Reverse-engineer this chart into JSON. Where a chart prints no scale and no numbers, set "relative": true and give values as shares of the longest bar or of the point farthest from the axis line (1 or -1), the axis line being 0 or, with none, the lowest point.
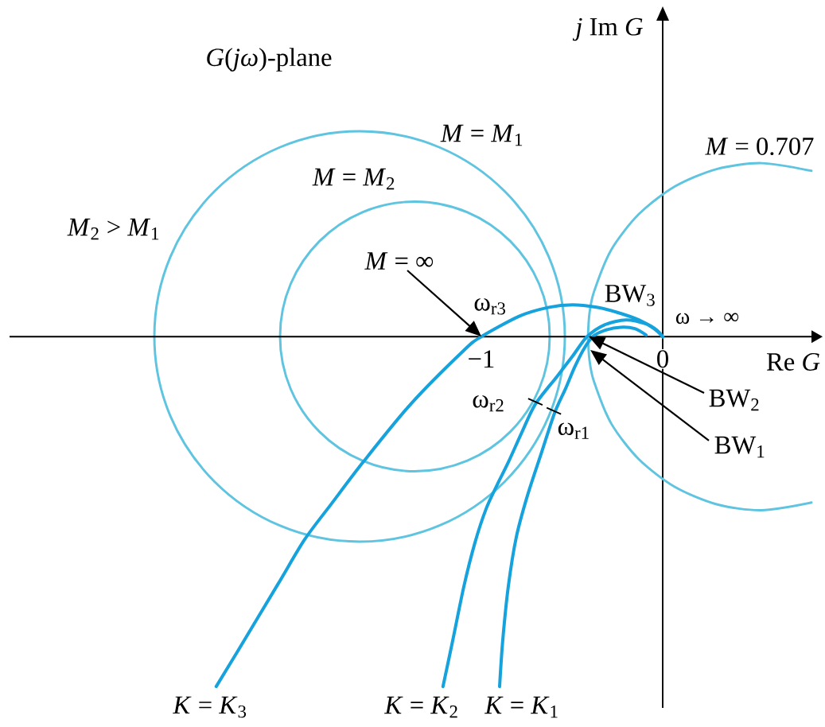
{
  "chart_data": {
    "type": "line",
    "relative": true,
    "xlabel": "Re *G*",
    "ylabel": "*j* Im *G*",
    "xlim": [
      -3.6,
      0.82
    ],
    "xticks": [
      {
        "value": -1,
        "label": "−1"
      },
      0
    ],
    "series": [
      {
        "name": "*M* = 0.707",
        "color": "#5ec4e0",
        "x": [
          -0.412,
          -0.404,
          -0.379,
          -0.284,
          -0.132,
          0.066,
          0.297,
          0.544,
          0.82
        ],
        "values": [
          0,
          0.065,
          0.128,
          0.248,
          0.35,
          0.429,
          0.479,
          0.496,
          0.474
        ]
      },
      {
        "color": "#5ec4e0",
        "x": [
          -0.412,
          -0.404,
          -0.379,
          -0.284,
          -0.132,
          0.066,
          0.297,
          0.544,
          0.82
        ],
        "values": [
          0,
          -0.065,
          -0.128,
          -0.248,
          -0.35,
          -0.429,
          -0.479,
          -0.496,
          -0.474
        ]
      },
      {
        "name": "*K* = *K*$_{3}$",
        "color": "#16a2dc",
        "x": [
          -2.461,
          -2.338,
          -2.118,
          -1.974,
          -1.825,
          -1.649,
          -1.386,
          -1.096,
          -1.0,
          -0.789,
          -0.627,
          -0.496,
          -0.364,
          -0.254,
          -0.132,
          -0.048,
          0
        ],
        "values": [
          -1,
          -0.895,
          -0.705,
          -0.58,
          -0.477,
          -0.357,
          -0.191,
          -0.039,
          0,
          0.059,
          0.084,
          0.091,
          0.084,
          0.07,
          0.048,
          0.023,
          0
        ]
      },
      {
        "name": "*K* = *K*$_{2}$",
        "color": "#16a2dc",
        "x": [
          -1.211,
          -1.158,
          -1.096,
          -1.035,
          -0.974,
          -0.912,
          -0.851,
          -0.776,
          -0.702,
          -0.583,
          -0.496,
          -0.417,
          -0.32,
          -0.202,
          -0.088,
          -0.031,
          0
        ],
        "values": [
          -1,
          -0.87,
          -0.714,
          -0.589,
          -0.493,
          -0.423,
          -0.359,
          -0.273,
          -0.193,
          -0.114,
          -0.055,
          0,
          0.034,
          0.048,
          0.036,
          0.018,
          0
        ]
      },
      {
        "name": "*K* = *K*$_{1}$",
        "color": "#16a2dc",
        "x": [
          -0.899,
          -0.882,
          -0.851,
          -0.807,
          -0.746,
          -0.671,
          -0.596,
          -0.535,
          -0.487,
          -0.439,
          -0.386,
          -0.32,
          -0.232,
          -0.154,
          -0.092
        ],
        "values": [
          -1,
          -0.87,
          -0.714,
          -0.573,
          -0.455,
          -0.336,
          -0.218,
          -0.148,
          -0.089,
          -0.039,
          0,
          0.018,
          0.027,
          0.023,
          0.005
        ]
      }
    ],
    "annotations": [
      "*G*(*jω*)-plane",
      "*M* = *M*$_{1}$",
      "*M* = *M*$_{2}$",
      "*M*$_{2}$ > *M*$_{1}$",
      "*M* = ∞",
      {
        "text": "ω$_{r3}$",
        "x": -1,
        "y": 0
      },
      {
        "text": "ω$_{r2}$",
        "x": -0.702,
        "y": -0.186
      },
      {
        "text": "ω$_{r1}$",
        "x": -0.6,
        "y": -0.212
      },
      {
        "text": "BW$_{3}$",
        "x": -0.399,
        "y": 0.086
      },
      "BW$_{2}$",
      "BW$_{1}$",
      {
        "text": "ω → ∞",
        "x": 0,
        "y": 0
      }
    ]
  }
}
